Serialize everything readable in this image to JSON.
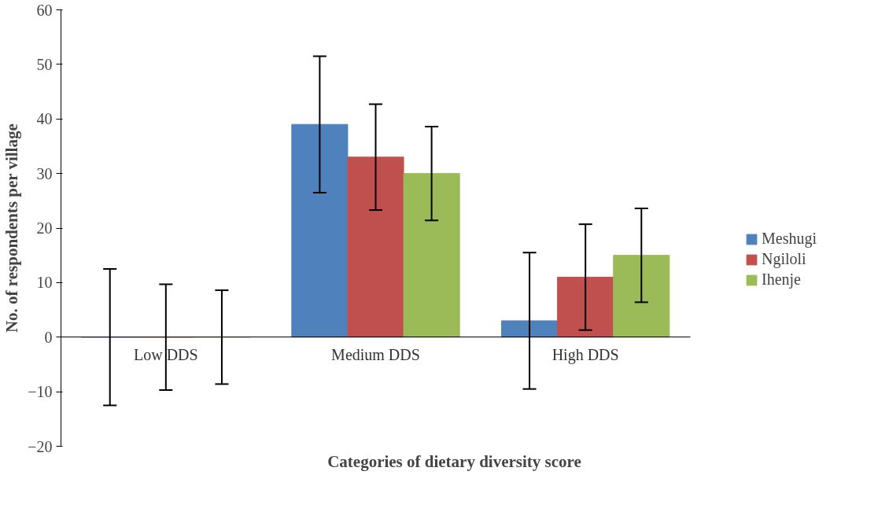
{
  "chart_data": {
    "type": "bar",
    "xlabel": "Categories of dietary diversity score",
    "ylabel": "No. of respondents per village",
    "categories": [
      "Low DDS",
      "Medium DDS",
      "High DDS"
    ],
    "series": [
      {
        "name": "Meshugi",
        "color": "#4f81bd",
        "values": [
          0,
          39,
          3
        ],
        "errors": [
          12.5,
          12.5,
          12.5
        ]
      },
      {
        "name": "Ngiloli",
        "color": "#c0504d",
        "values": [
          0,
          33,
          11
        ],
        "errors": [
          9.7,
          9.7,
          9.7
        ]
      },
      {
        "name": "Ihenje",
        "color": "#9bbb59",
        "values": [
          0,
          30,
          15
        ],
        "errors": [
          8.6,
          8.6,
          8.6
        ]
      }
    ],
    "ylim": [
      -20,
      60
    ],
    "yticks": [
      -20,
      -10,
      0,
      10,
      20,
      30,
      40,
      50,
      60
    ],
    "grid": false,
    "legend": "right"
  }
}
